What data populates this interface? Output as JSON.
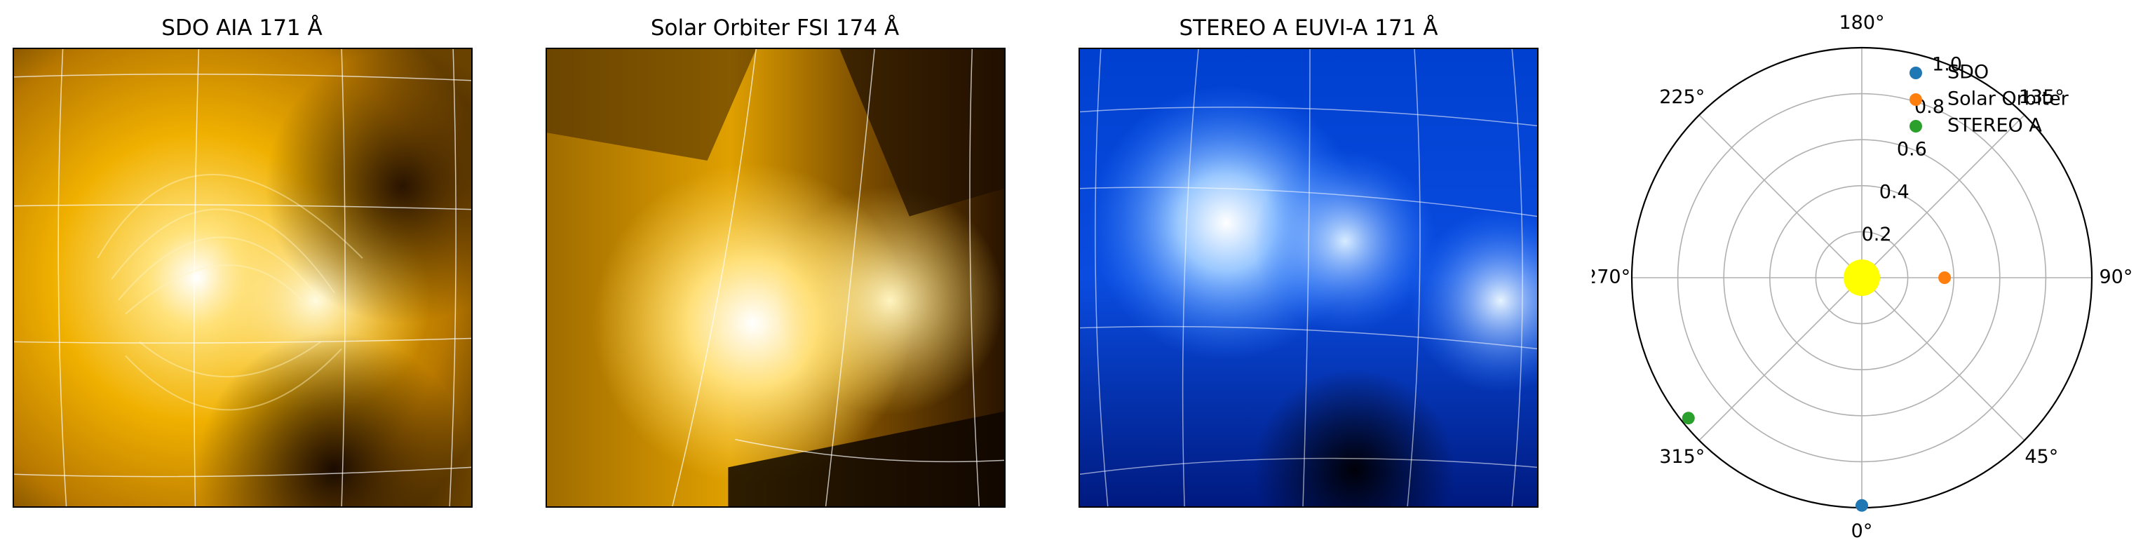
{
  "panels": [
    {
      "title": "SDO AIA 171 Å",
      "colormap": "sdoaia171",
      "colors": [
        "#1a0d00",
        "#7a4a00",
        "#e0a000",
        "#ffd24a",
        "#ffffff"
      ]
    },
    {
      "title": "Solar Orbiter FSI 174 Å",
      "colormap": "solo-fsi174",
      "colors": [
        "#140a00",
        "#5a3a00",
        "#c89000",
        "#f2c040",
        "#ffffff"
      ]
    },
    {
      "title": "STEREO A EUVI-A 171 Å",
      "colormap": "euvi171",
      "colors": [
        "#000010",
        "#0020a0",
        "#0a5cff",
        "#7ab8ff",
        "#ffffff"
      ]
    }
  ],
  "chart_data": {
    "type": "scatter",
    "projection": "polar",
    "theta_zero_location": "bottom",
    "theta_direction": "counterclockwise",
    "theta_tick_labels": [
      "0°",
      "45°",
      "90°",
      "135°",
      "180°",
      "225°",
      "270°",
      "315°"
    ],
    "r_tick_labels": [
      "0.2",
      "0.4",
      "0.6",
      "0.8",
      "1.0"
    ],
    "rlim": [
      0,
      1.0
    ],
    "grid": true,
    "legend_placement": "top-right",
    "sun": {
      "r": 0,
      "theta_deg": 0,
      "color": "#ffff00"
    },
    "series": [
      {
        "name": "SDO",
        "color": "#1f77b4",
        "theta_deg": 0,
        "r": 0.99
      },
      {
        "name": "Solar Orbiter",
        "color": "#ff7f0e",
        "theta_deg": 90,
        "r": 0.36
      },
      {
        "name": "STEREO A",
        "color": "#2ca02c",
        "theta_deg": 309,
        "r": 0.97
      }
    ]
  }
}
